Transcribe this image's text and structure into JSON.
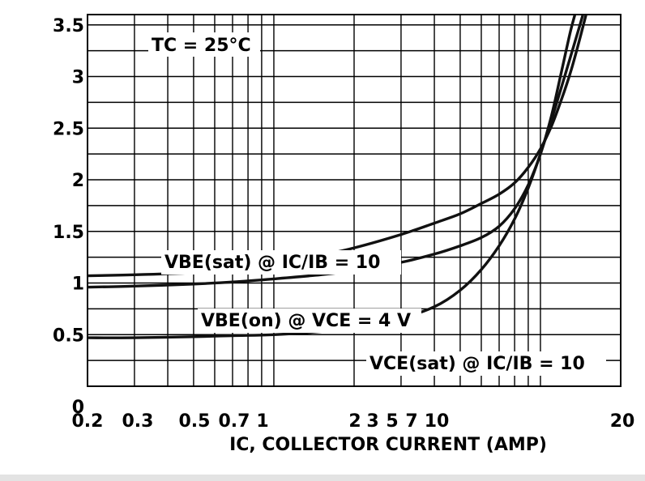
{
  "chart_data": {
    "type": "line",
    "title": "",
    "xlabel": "IC, COLLECTOR CURRENT (AMP)",
    "ylabel": "",
    "x_scale": "log",
    "xlim": [
      0.2,
      20
    ],
    "ylim": [
      0,
      3.6
    ],
    "grid": true,
    "x_tick_labels": [
      "0.2",
      "0.3",
      "0.5",
      "0.7",
      "1",
      "2",
      "3",
      "5",
      "7",
      "10",
      "20"
    ],
    "y_tick_labels": [
      "0",
      "0.5",
      "1",
      "1.5",
      "2",
      "2.5",
      "3",
      "3.5"
    ],
    "annotations": [
      {
        "text": "TC = 25°C"
      }
    ],
    "series": [
      {
        "name": "VBE(sat) @ IC/IB = 10",
        "x": [
          0.2,
          0.3,
          0.5,
          0.7,
          1.0,
          1.5,
          2.0,
          3.0,
          4.0,
          5.0,
          6.0,
          7.0,
          8.0,
          9.0,
          10.0,
          11.0,
          12.0,
          13.0,
          14.0,
          15.0
        ],
        "y": [
          1.07,
          1.08,
          1.1,
          1.13,
          1.18,
          1.27,
          1.34,
          1.47,
          1.58,
          1.67,
          1.77,
          1.86,
          1.97,
          2.12,
          2.3,
          2.52,
          2.78,
          3.05,
          3.35,
          3.65
        ]
      },
      {
        "name": "VBE(on) @ VCE = 4 V",
        "x": [
          0.2,
          0.3,
          0.5,
          0.7,
          1.0,
          1.5,
          2.0,
          3.0,
          4.0,
          5.0,
          6.0,
          7.0,
          8.0,
          9.0,
          10.0,
          11.0,
          12.0,
          13.0,
          14.0
        ],
        "y": [
          0.96,
          0.97,
          0.99,
          1.01,
          1.04,
          1.08,
          1.12,
          1.2,
          1.28,
          1.36,
          1.44,
          1.55,
          1.72,
          1.95,
          2.25,
          2.62,
          3.05,
          3.45,
          3.75
        ]
      },
      {
        "name": "VCE(sat) @ IC/IB = 10",
        "x": [
          0.2,
          0.3,
          0.5,
          0.7,
          1.0,
          1.5,
          2.0,
          3.0,
          4.0,
          5.0,
          6.0,
          7.0,
          8.0,
          9.0,
          10.0,
          11.0,
          12.0,
          13.0,
          14.0,
          15.0
        ],
        "y": [
          0.47,
          0.47,
          0.48,
          0.49,
          0.5,
          0.53,
          0.57,
          0.66,
          0.77,
          0.93,
          1.13,
          1.36,
          1.62,
          1.92,
          2.25,
          2.58,
          2.9,
          3.2,
          3.48,
          3.75
        ]
      }
    ]
  }
}
